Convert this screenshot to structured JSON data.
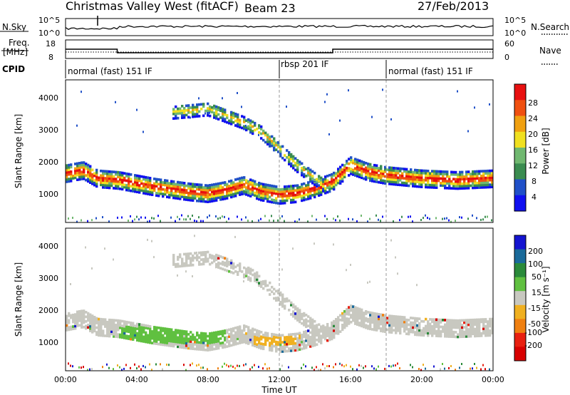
{
  "header": {
    "station": "Christmas Valley West (fitACF)",
    "beam": "Beam 23",
    "date": "27/Feb/2013"
  },
  "noise_panel": {
    "left_label": "N.Sky",
    "right_label": "N.Search",
    "left_ticks": [
      "10^5",
      "10^0"
    ],
    "right_ticks": [
      "10^5",
      "10^0"
    ]
  },
  "freq_panel": {
    "left_label_1": "Freq.",
    "left_label_2": "[MHz]",
    "left_ticks": [
      "18",
      "8"
    ],
    "right_label": "Nave",
    "right_ticks": [
      "60",
      "0"
    ]
  },
  "cpid": {
    "label": "CPID",
    "segments": [
      {
        "start_hour": 0,
        "end_hour": 12,
        "text": "normal (fast) 151 IF"
      },
      {
        "start_hour": 12,
        "end_hour": 18,
        "text": "rbsp 201 IF"
      },
      {
        "start_hour": 18,
        "end_hour": 24,
        "text": "normal (fast) 151 IF"
      }
    ]
  },
  "power_panel": {
    "ylabel": "Slant Range [km]",
    "yticks": [
      "1000",
      "2000",
      "3000",
      "4000"
    ],
    "colorbar": {
      "label": "Power [dB]",
      "ticks": [
        "4",
        "8",
        "12",
        "16",
        "20",
        "24",
        "28"
      ],
      "colors": [
        "#1010f0",
        "#2050c8",
        "#3a8c50",
        "#70b870",
        "#f0e020",
        "#f0a010",
        "#f05010",
        "#e81010"
      ]
    }
  },
  "velocity_panel": {
    "ylabel": "Slant Range [km]",
    "yticks": [
      "1000",
      "2000",
      "3000",
      "4000"
    ],
    "colorbar": {
      "label": "Velocity [m s⁻¹]",
      "ticks": [
        "200",
        "100",
        "50",
        "15",
        "-15",
        "-50",
        "-100",
        "-200"
      ],
      "colors": [
        "#1414d0",
        "#1a6a9a",
        "#2a8a3a",
        "#60c040",
        "#c8c8c0",
        "#f0b020",
        "#f08010",
        "#e82010",
        "#d80000"
      ]
    }
  },
  "xaxis": {
    "label": "Time UT",
    "ticks": [
      "00:00",
      "04:00",
      "08:00",
      "12:00",
      "16:00",
      "20:00",
      "00:00"
    ]
  },
  "chart_data": {
    "type": "heatmap",
    "title": "Christmas Valley West (fitACF) Beam 23 27/Feb/2013",
    "xlabel": "Time UT",
    "ylabel": "Slant Range [km]",
    "xlim_hours": [
      0,
      24
    ],
    "ylim_km": [
      200,
      4500
    ],
    "frequency_mhz": [
      {
        "start_hour": 0,
        "end_hour": 2.9,
        "value": 13
      },
      {
        "start_hour": 2.9,
        "end_hour": 15,
        "value": 10.5
      },
      {
        "start_hour": 15,
        "end_hour": 24,
        "value": 13
      }
    ],
    "nave": 10,
    "power_bands": [
      {
        "name": "main",
        "points": [
          [
            0,
            1650
          ],
          [
            1,
            1750
          ],
          [
            1.8,
            1500
          ],
          [
            3,
            1450
          ],
          [
            5,
            1250
          ],
          [
            7,
            1100
          ],
          [
            8,
            1050
          ],
          [
            9,
            1150
          ],
          [
            10,
            1300
          ],
          [
            11,
            1100
          ],
          [
            12,
            1000
          ],
          [
            13,
            1050
          ],
          [
            14,
            1200
          ],
          [
            15,
            1400
          ],
          [
            16,
            1900
          ],
          [
            17,
            1700
          ],
          [
            18,
            1600
          ],
          [
            20,
            1500
          ],
          [
            22,
            1450
          ],
          [
            24,
            1500
          ]
        ],
        "peak_db": 30
      },
      {
        "name": "upper",
        "points": [
          [
            6,
            3500
          ],
          [
            8,
            3600
          ],
          [
            9,
            3400
          ],
          [
            10,
            3200
          ],
          [
            11,
            2900
          ],
          [
            12,
            2400
          ],
          [
            13,
            1900
          ],
          [
            14,
            1500
          ],
          [
            14.5,
            1300
          ]
        ],
        "peak_db": 16
      }
    ],
    "velocity_levels": [
      {
        "hours": [
          3,
          9
        ],
        "range_km": [
          1000,
          1500
        ],
        "velocity": 40
      },
      {
        "hours": [
          10.5,
          13
        ],
        "range_km": [
          950,
          1200
        ],
        "velocity": -60
      },
      {
        "hours": [
          15.3,
          24
        ],
        "range_km": [
          1300,
          2000
        ],
        "velocity": 0
      }
    ]
  }
}
